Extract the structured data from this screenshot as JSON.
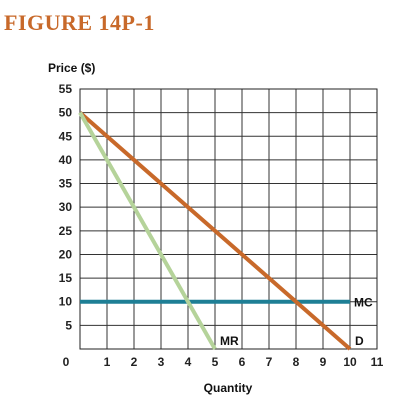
{
  "figure_title": "FIGURE 14P-1",
  "chart_data": {
    "type": "line",
    "ylabel": "Price ($)",
    "xlabel": "Quantity",
    "xlim": [
      0,
      11
    ],
    "ylim": [
      0,
      55
    ],
    "x_ticks": [
      0,
      1,
      2,
      3,
      4,
      5,
      6,
      7,
      8,
      9,
      10,
      11
    ],
    "y_ticks": [
      5,
      10,
      15,
      20,
      25,
      30,
      35,
      40,
      45,
      50,
      55
    ],
    "origin_label": "0",
    "grid": true,
    "series": [
      {
        "name": "D",
        "color": "#c8692a",
        "x": [
          0,
          10
        ],
        "y": [
          50,
          0
        ]
      },
      {
        "name": "MR",
        "color": "#b5d39a",
        "x": [
          0,
          5
        ],
        "y": [
          50,
          0
        ]
      },
      {
        "name": "MC",
        "color": "#1e7f95",
        "x": [
          0,
          10
        ],
        "y": [
          10,
          10
        ]
      }
    ]
  }
}
